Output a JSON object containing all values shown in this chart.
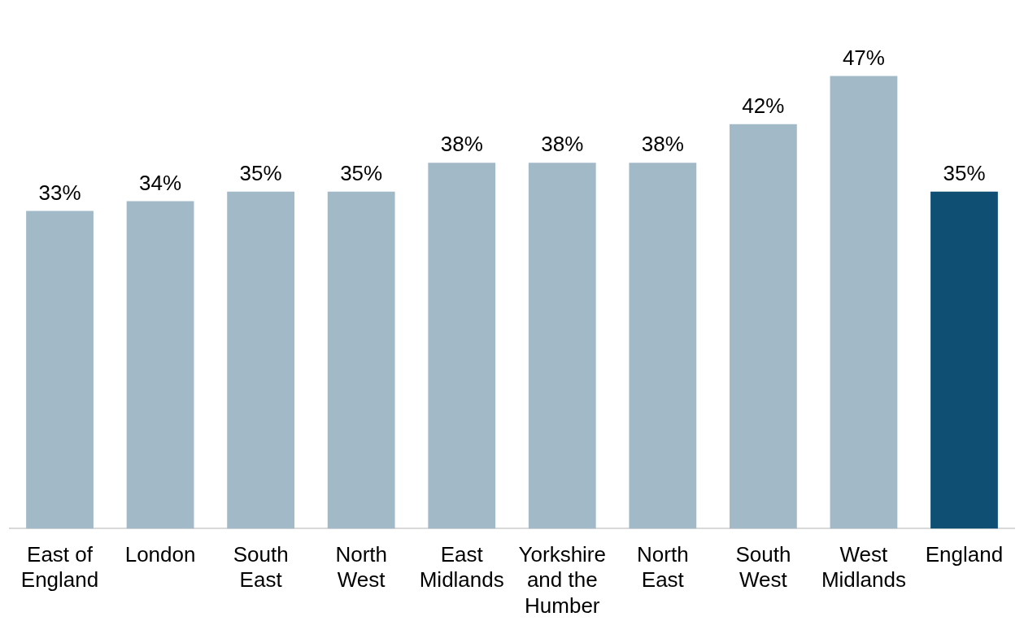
{
  "chart_data": {
    "type": "bar",
    "categories": [
      "East of England",
      "London",
      "South East",
      "North West",
      "East Midlands",
      "Yorkshire and the Humber",
      "North East",
      "South West",
      "West Midlands",
      "England"
    ],
    "values": [
      33,
      34,
      35,
      35,
      38,
      38,
      38,
      42,
      47,
      35
    ],
    "colors": [
      "#a2b9c8",
      "#a2b9c8",
      "#a2b9c8",
      "#a2b9c8",
      "#a2b9c8",
      "#a2b9c8",
      "#a2b9c8",
      "#a2b9c8",
      "#a2b9c8",
      "#0f4f74"
    ],
    "value_labels": [
      "33%",
      "34%",
      "35%",
      "35%",
      "38%",
      "38%",
      "38%",
      "42%",
      "47%",
      "35%"
    ],
    "grid": false,
    "legend": false
  }
}
